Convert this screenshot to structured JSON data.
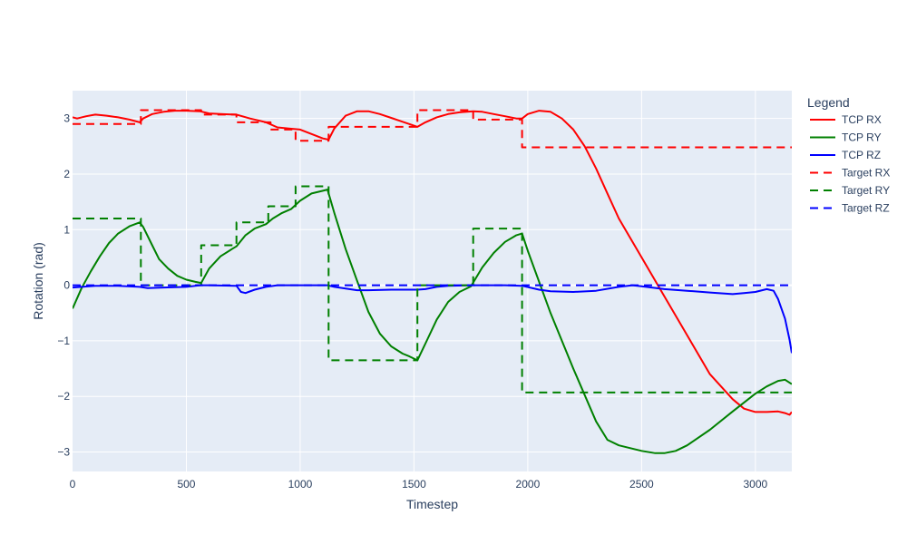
{
  "chart_data": {
    "type": "line",
    "xlabel": "Timestep",
    "ylabel": "Rotation (rad)",
    "xlim": [
      0,
      3160
    ],
    "ylim": [
      -3.35,
      3.5
    ],
    "x_ticks": [
      0,
      500,
      1000,
      1500,
      2000,
      2500,
      3000
    ],
    "y_ticks": [
      -3,
      -2,
      -1,
      0,
      1,
      2,
      3
    ],
    "x_tick_labels": [
      "0",
      "500",
      "1000",
      "1500",
      "2000",
      "2500",
      "3000"
    ],
    "y_tick_labels": [
      "−3",
      "−2",
      "−1",
      "0",
      "1",
      "2",
      "3"
    ],
    "grid": true,
    "legend": {
      "title": "Legend",
      "placement": "right"
    },
    "colors": {
      "plot_bg": "#e5ecf6",
      "grid": "#ffffff",
      "text": "#2a3f5f"
    },
    "series": [
      {
        "name": "TCP RX",
        "color": "#ff0000",
        "dash": "solid",
        "shape": "linear",
        "points": [
          [
            0,
            3.02
          ],
          [
            20,
            3.0
          ],
          [
            60,
            3.04
          ],
          [
            100,
            3.07
          ],
          [
            150,
            3.05
          ],
          [
            200,
            3.02
          ],
          [
            250,
            2.98
          ],
          [
            295,
            2.93
          ],
          [
            310,
            3.0
          ],
          [
            350,
            3.08
          ],
          [
            400,
            3.12
          ],
          [
            450,
            3.14
          ],
          [
            500,
            3.14
          ],
          [
            560,
            3.13
          ],
          [
            600,
            3.09
          ],
          [
            650,
            3.08
          ],
          [
            720,
            3.07
          ],
          [
            780,
            3.0
          ],
          [
            850,
            2.93
          ],
          [
            900,
            2.84
          ],
          [
            950,
            2.82
          ],
          [
            1000,
            2.8
          ],
          [
            1050,
            2.72
          ],
          [
            1100,
            2.64
          ],
          [
            1125,
            2.62
          ],
          [
            1150,
            2.82
          ],
          [
            1200,
            3.05
          ],
          [
            1250,
            3.13
          ],
          [
            1300,
            3.13
          ],
          [
            1350,
            3.08
          ],
          [
            1400,
            3.01
          ],
          [
            1450,
            2.94
          ],
          [
            1500,
            2.87
          ],
          [
            1515,
            2.85
          ],
          [
            1550,
            2.93
          ],
          [
            1600,
            3.02
          ],
          [
            1650,
            3.08
          ],
          [
            1700,
            3.11
          ],
          [
            1760,
            3.13
          ],
          [
            1800,
            3.12
          ],
          [
            1850,
            3.08
          ],
          [
            1900,
            3.04
          ],
          [
            1950,
            3.0
          ],
          [
            1975,
            3.0
          ],
          [
            2000,
            3.08
          ],
          [
            2050,
            3.14
          ],
          [
            2100,
            3.12
          ],
          [
            2150,
            3.0
          ],
          [
            2200,
            2.8
          ],
          [
            2250,
            2.5
          ],
          [
            2300,
            2.1
          ],
          [
            2350,
            1.65
          ],
          [
            2400,
            1.2
          ],
          [
            2500,
            0.5
          ],
          [
            2600,
            -0.2
          ],
          [
            2700,
            -0.9
          ],
          [
            2800,
            -1.6
          ],
          [
            2900,
            -2.05
          ],
          [
            2950,
            -2.22
          ],
          [
            3000,
            -2.28
          ],
          [
            3050,
            -2.28
          ],
          [
            3100,
            -2.27
          ],
          [
            3130,
            -2.3
          ],
          [
            3150,
            -2.33
          ],
          [
            3160,
            -2.28
          ]
        ]
      },
      {
        "name": "TCP RY",
        "color": "#008000",
        "dash": "solid",
        "shape": "linear",
        "points": [
          [
            0,
            -0.42
          ],
          [
            40,
            -0.05
          ],
          [
            80,
            0.25
          ],
          [
            120,
            0.52
          ],
          [
            160,
            0.76
          ],
          [
            200,
            0.93
          ],
          [
            250,
            1.06
          ],
          [
            295,
            1.13
          ],
          [
            310,
            1.05
          ],
          [
            350,
            0.72
          ],
          [
            380,
            0.47
          ],
          [
            420,
            0.3
          ],
          [
            460,
            0.17
          ],
          [
            500,
            0.1
          ],
          [
            540,
            0.06
          ],
          [
            565,
            0.04
          ],
          [
            600,
            0.3
          ],
          [
            650,
            0.52
          ],
          [
            700,
            0.65
          ],
          [
            720,
            0.7
          ],
          [
            760,
            0.9
          ],
          [
            800,
            1.02
          ],
          [
            850,
            1.1
          ],
          [
            880,
            1.2
          ],
          [
            920,
            1.3
          ],
          [
            960,
            1.37
          ],
          [
            1000,
            1.52
          ],
          [
            1050,
            1.65
          ],
          [
            1100,
            1.7
          ],
          [
            1120,
            1.72
          ],
          [
            1150,
            1.3
          ],
          [
            1200,
            0.65
          ],
          [
            1250,
            0.08
          ],
          [
            1300,
            -0.48
          ],
          [
            1350,
            -0.87
          ],
          [
            1400,
            -1.1
          ],
          [
            1450,
            -1.23
          ],
          [
            1480,
            -1.28
          ],
          [
            1515,
            -1.35
          ],
          [
            1550,
            -1.05
          ],
          [
            1600,
            -0.62
          ],
          [
            1650,
            -0.3
          ],
          [
            1700,
            -0.12
          ],
          [
            1750,
            -0.02
          ],
          [
            1800,
            0.32
          ],
          [
            1850,
            0.58
          ],
          [
            1900,
            0.78
          ],
          [
            1950,
            0.9
          ],
          [
            1975,
            0.93
          ],
          [
            2000,
            0.62
          ],
          [
            2100,
            -0.5
          ],
          [
            2200,
            -1.5
          ],
          [
            2300,
            -2.45
          ],
          [
            2350,
            -2.78
          ],
          [
            2400,
            -2.88
          ],
          [
            2500,
            -2.98
          ],
          [
            2560,
            -3.02
          ],
          [
            2600,
            -3.02
          ],
          [
            2650,
            -2.98
          ],
          [
            2700,
            -2.88
          ],
          [
            2800,
            -2.6
          ],
          [
            2900,
            -2.27
          ],
          [
            3000,
            -1.95
          ],
          [
            3050,
            -1.82
          ],
          [
            3100,
            -1.72
          ],
          [
            3130,
            -1.7
          ],
          [
            3160,
            -1.78
          ]
        ]
      },
      {
        "name": "TCP RZ",
        "color": "#0000ff",
        "dash": "solid",
        "shape": "linear",
        "points": [
          [
            0,
            -0.04
          ],
          [
            100,
            -0.01
          ],
          [
            200,
            -0.01
          ],
          [
            295,
            -0.03
          ],
          [
            330,
            -0.05
          ],
          [
            400,
            -0.04
          ],
          [
            500,
            -0.03
          ],
          [
            560,
            0.0
          ],
          [
            600,
            0.0
          ],
          [
            720,
            -0.01
          ],
          [
            740,
            -0.12
          ],
          [
            760,
            -0.14
          ],
          [
            800,
            -0.08
          ],
          [
            850,
            -0.03
          ],
          [
            900,
            0.0
          ],
          [
            1000,
            0.0
          ],
          [
            1120,
            0.0
          ],
          [
            1150,
            -0.03
          ],
          [
            1200,
            -0.06
          ],
          [
            1250,
            -0.09
          ],
          [
            1300,
            -0.09
          ],
          [
            1400,
            -0.08
          ],
          [
            1515,
            -0.08
          ],
          [
            1550,
            -0.07
          ],
          [
            1600,
            -0.03
          ],
          [
            1650,
            -0.01
          ],
          [
            1760,
            0.0
          ],
          [
            1900,
            0.0
          ],
          [
            1975,
            -0.01
          ],
          [
            2050,
            -0.08
          ],
          [
            2100,
            -0.11
          ],
          [
            2200,
            -0.12
          ],
          [
            2300,
            -0.1
          ],
          [
            2400,
            -0.03
          ],
          [
            2460,
            0.0
          ],
          [
            2500,
            -0.02
          ],
          [
            2600,
            -0.07
          ],
          [
            2700,
            -0.1
          ],
          [
            2800,
            -0.13
          ],
          [
            2900,
            -0.16
          ],
          [
            2950,
            -0.14
          ],
          [
            3000,
            -0.12
          ],
          [
            3050,
            -0.07
          ],
          [
            3080,
            -0.1
          ],
          [
            3100,
            -0.25
          ],
          [
            3130,
            -0.6
          ],
          [
            3150,
            -0.98
          ],
          [
            3160,
            -1.22
          ]
        ]
      },
      {
        "name": "Target RX",
        "color": "#ff0000",
        "dash": "dash",
        "shape": "hv",
        "points": [
          [
            0,
            2.9
          ],
          [
            300,
            3.15
          ],
          [
            565,
            3.07
          ],
          [
            720,
            2.93
          ],
          [
            870,
            2.8
          ],
          [
            980,
            2.6
          ],
          [
            1125,
            2.85
          ],
          [
            1515,
            3.15
          ],
          [
            1760,
            2.98
          ],
          [
            1975,
            2.48
          ],
          [
            3160,
            2.48
          ]
        ]
      },
      {
        "name": "Target RY",
        "color": "#008000",
        "dash": "dash",
        "shape": "hv",
        "points": [
          [
            0,
            1.2
          ],
          [
            300,
            0.0
          ],
          [
            565,
            0.72
          ],
          [
            720,
            1.13
          ],
          [
            860,
            1.42
          ],
          [
            980,
            1.78
          ],
          [
            1125,
            -1.35
          ],
          [
            1515,
            0.0
          ],
          [
            1760,
            1.02
          ],
          [
            1975,
            -1.93
          ],
          [
            3160,
            -1.93
          ]
        ]
      },
      {
        "name": "Target RZ",
        "color": "#0000ff",
        "dash": "dash",
        "shape": "hv",
        "points": [
          [
            0,
            0.0
          ],
          [
            3160,
            0.0
          ]
        ]
      }
    ]
  }
}
